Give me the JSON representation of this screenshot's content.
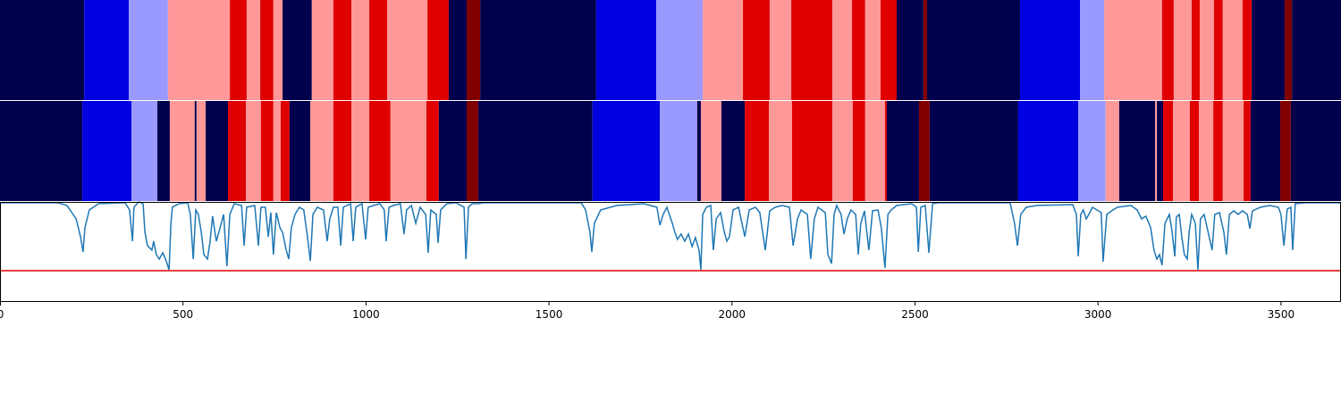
{
  "chart_data": [
    {
      "type": "segments",
      "xlim": [
        0,
        3664
      ],
      "edges": [
        0,
        230,
        352,
        459,
        628,
        674,
        711,
        747,
        772,
        852,
        911,
        960,
        1009,
        1058,
        1168,
        1226,
        1275,
        1312,
        1629,
        1793,
        1920,
        2030,
        2103,
        2162,
        2274,
        2328,
        2364,
        2406,
        2450,
        2523,
        2533,
        2787,
        2951,
        3017,
        3175,
        3207,
        3256,
        3278,
        3317,
        3341,
        3395,
        3420,
        3510,
        3530,
        3664
      ],
      "colors": [
        "#00004c",
        "#0000e0",
        "#9999ff",
        "#ff9999",
        "#e00000",
        "#ff9999",
        "#e00000",
        "#ff9999",
        "#00004c",
        "#ff9999",
        "#e00000",
        "#ff9999",
        "#e00000",
        "#ff9999",
        "#e00000",
        "#00004c",
        "#800000",
        "#00004c",
        "#0000e0",
        "#9999ff",
        "#ff9999",
        "#e00000",
        "#ff9999",
        "#e00000",
        "#ff9999",
        "#e00000",
        "#ff9999",
        "#e00000",
        "#00004c",
        "#800000",
        "#00004c",
        "#0000e0",
        "#9999ff",
        "#ff9999",
        "#e00000",
        "#ff9999",
        "#e00000",
        "#ff9999",
        "#e00000",
        "#ff9999",
        "#e00000",
        "#00004c",
        "#800000",
        "#00004c"
      ]
    },
    {
      "type": "segments",
      "xlim": [
        0,
        3664
      ],
      "edges": [
        0,
        225,
        359,
        430,
        464,
        532,
        537,
        562,
        623,
        672,
        713,
        747,
        767,
        791,
        848,
        911,
        960,
        1009,
        1067,
        1165,
        1199,
        1275,
        1307,
        1619,
        1803,
        1905,
        1915,
        1971,
        2035,
        2101,
        2164,
        2274,
        2330,
        2364,
        2418,
        2423,
        2511,
        2540,
        2782,
        2946,
        3021,
        3058,
        3156,
        3161,
        3178,
        3205,
        3251,
        3276,
        3315,
        3341,
        3398,
        3417,
        3498,
        3527,
        3664
      ],
      "colors": [
        "#00004c",
        "#0000e0",
        "#9999ff",
        "#00004c",
        "#ff9999",
        "#00004c",
        "#ff9999",
        "#00004c",
        "#e00000",
        "#ff9999",
        "#e00000",
        "#ff9999",
        "#e00000",
        "#00004c",
        "#ff9999",
        "#e00000",
        "#ff9999",
        "#e00000",
        "#ff9999",
        "#e00000",
        "#00004c",
        "#800000",
        "#00004c",
        "#0000e0",
        "#9999ff",
        "#00004c",
        "#ff9999",
        "#00004c",
        "#e00000",
        "#ff9999",
        "#e00000",
        "#ff9999",
        "#e00000",
        "#ff9999",
        "#e00000",
        "#00004c",
        "#800000",
        "#00004c",
        "#0000e0",
        "#9999ff",
        "#ff9999",
        "#00004c",
        "#ff9999",
        "#00004c",
        "#e00000",
        "#ff9999",
        "#e00000",
        "#ff9999",
        "#e00000",
        "#ff9999",
        "#e00000",
        "#00004c",
        "#800000",
        "#00004c"
      ]
    },
    {
      "type": "line",
      "xlim": [
        0,
        3664
      ],
      "ylim": [
        0,
        112
      ],
      "xticks": [
        0,
        500,
        1000,
        1500,
        2000,
        2500,
        3000,
        3500
      ],
      "threshold": 35,
      "threshold_color": "#e00000",
      "x": [
        0,
        159,
        183,
        208,
        220,
        227,
        232,
        244,
        269,
        342,
        354,
        362,
        366,
        379,
        391,
        396,
        403,
        415,
        420,
        427,
        435,
        445,
        454,
        462,
        467,
        471,
        489,
        513,
        520,
        528,
        535,
        542,
        550,
        557,
        567,
        574,
        581,
        591,
        598,
        611,
        620,
        628,
        640,
        660,
        667,
        674,
        696,
        706,
        713,
        725,
        733,
        740,
        747,
        755,
        765,
        772,
        782,
        789,
        796,
        806,
        818,
        830,
        840,
        848,
        855,
        867,
        884,
        894,
        901,
        911,
        923,
        931,
        938,
        958,
        965,
        972,
        989,
        999,
        1006,
        1021,
        1038,
        1050,
        1055,
        1063,
        1075,
        1094,
        1104,
        1111,
        1124,
        1136,
        1148,
        1163,
        1170,
        1177,
        1192,
        1197,
        1204,
        1221,
        1246,
        1268,
        1273,
        1280,
        1290,
        1307,
        1319,
        1588,
        1600,
        1612,
        1617,
        1624,
        1641,
        1685,
        1759,
        1795,
        1803,
        1812,
        1822,
        1837,
        1844,
        1851,
        1861,
        1871,
        1881,
        1891,
        1900,
        1910,
        1915,
        1920,
        1930,
        1942,
        1949,
        1957,
        1969,
        1979,
        1986,
        1993,
        2003,
        2018,
        2035,
        2047,
        2064,
        2076,
        2091,
        2103,
        2118,
        2137,
        2157,
        2167,
        2179,
        2189,
        2206,
        2215,
        2225,
        2235,
        2255,
        2262,
        2272,
        2279,
        2286,
        2298,
        2306,
        2315,
        2325,
        2338,
        2345,
        2352,
        2362,
        2374,
        2384,
        2399,
        2408,
        2418,
        2426,
        2435,
        2450,
        2491,
        2504,
        2509,
        2516,
        2528,
        2538,
        2548,
        2565,
        2760,
        2772,
        2780,
        2789,
        2804,
        2833,
        2931,
        2941,
        2946,
        2953,
        2960,
        2968,
        2975,
        2985,
        3009,
        3014,
        3024,
        3041,
        3053,
        3090,
        3107,
        3119,
        3131,
        3144,
        3153,
        3161,
        3168,
        3175,
        3183,
        3195,
        3202,
        3210,
        3214,
        3222,
        3229,
        3236,
        3244,
        3249,
        3256,
        3266,
        3273,
        3280,
        3290,
        3302,
        3312,
        3319,
        3332,
        3344,
        3351,
        3359,
        3371,
        3383,
        3395,
        3408,
        3415,
        3422,
        3444,
        3469,
        3493,
        3500,
        3508,
        3517,
        3527,
        3532,
        3539,
        3566,
        3664
      ],
      "series": [
        {
          "color": "#1f77b4",
          "values": [
            111,
            111,
            108,
            93,
            73,
            56,
            83,
            103,
            110,
            111,
            103,
            68,
            106,
            112,
            110,
            78,
            63,
            58,
            68,
            53,
            48,
            55,
            46,
            36,
            88,
            106,
            110,
            111,
            98,
            48,
            103,
            98,
            78,
            53,
            48,
            68,
            96,
            68,
            78,
            98,
            40,
            98,
            110,
            108,
            63,
            106,
            108,
            63,
            106,
            106,
            73,
            100,
            53,
            100,
            83,
            78,
            58,
            48,
            83,
            98,
            106,
            103,
            73,
            46,
            98,
            106,
            103,
            68,
            93,
            106,
            106,
            63,
            106,
            110,
            68,
            106,
            110,
            70,
            106,
            108,
            110,
            103,
            68,
            106,
            108,
            110,
            76,
            103,
            108,
            88,
            106,
            98,
            55,
            103,
            98,
            66,
            103,
            110,
            111,
            106,
            48,
            106,
            110,
            110,
            111,
            111,
            103,
            78,
            56,
            88,
            103,
            108,
            110,
            106,
            86,
            98,
            106,
            88,
            78,
            70,
            76,
            68,
            76,
            62,
            72,
            58,
            36,
            98,
            106,
            108,
            58,
            93,
            100,
            78,
            68,
            73,
            103,
            106,
            73,
            103,
            106,
            100,
            58,
            102,
            106,
            108,
            106,
            63,
            93,
            103,
            98,
            48,
            93,
            106,
            100,
            53,
            43,
            98,
            108,
            98,
            76,
            93,
            103,
            98,
            53,
            88,
            102,
            58,
            102,
            103,
            83,
            38,
            98,
            103,
            108,
            110,
            106,
            56,
            106,
            108,
            55,
            110,
            111,
            111,
            88,
            63,
            98,
            106,
            108,
            109,
            98,
            51,
            98,
            103,
            93,
            98,
            106,
            100,
            45,
            98,
            103,
            106,
            108,
            103,
            93,
            96,
            83,
            58,
            48,
            53,
            41,
            88,
            98,
            80,
            51,
            95,
            98,
            73,
            53,
            48,
            78,
            98,
            88,
            36,
            93,
            98,
            76,
            58,
            98,
            100,
            78,
            53,
            98,
            102,
            98,
            102,
            98,
            82,
            102,
            106,
            108,
            106,
            98,
            63,
            104,
            106,
            58,
            110,
            111,
            111
          ]
        }
      ]
    }
  ]
}
